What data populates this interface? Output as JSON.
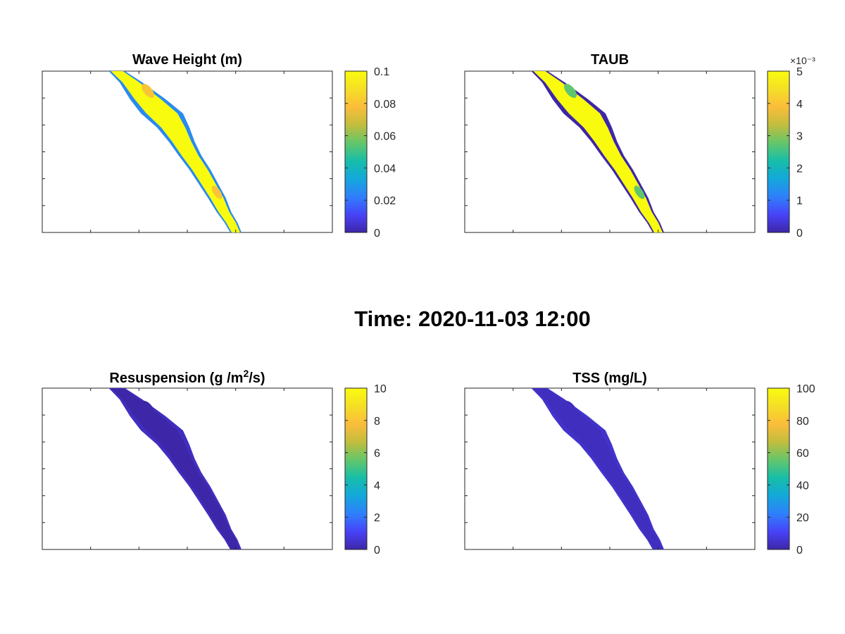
{
  "suptitle": "Time: 2020-11-03 12:00",
  "colormap": [
    "#3e26a8",
    "#4743f8",
    "#2f80fb",
    "#13a8db",
    "#17bea8",
    "#64c66a",
    "#c2bd3d",
    "#fbbd3b",
    "#f5df26",
    "#f9fb0e"
  ],
  "chart_data": [
    {
      "type": "heatmap",
      "title_prefix": "Wave Height (m)",
      "title_sup": "",
      "title_suffix": "",
      "colorbar": {
        "clim": [
          0,
          0.1
        ],
        "ticks": [
          "0",
          "0.02",
          "0.04",
          "0.06",
          "0.08",
          "0.1"
        ],
        "exponent": ""
      },
      "field_level": 1.0,
      "edge_level": 0.25,
      "accent_level": 0.8,
      "xticks_shown": 7,
      "yticks_shown": 7
    },
    {
      "type": "heatmap",
      "title_prefix": "TAUB",
      "title_sup": "",
      "title_suffix": "",
      "colorbar": {
        "clim": [
          0,
          5
        ],
        "ticks": [
          "0",
          "1",
          "2",
          "3",
          "4",
          "5"
        ],
        "exponent": "×10⁻³"
      },
      "field_level": 1.0,
      "edge_level": 0.0,
      "accent_level": 0.55,
      "xticks_shown": 7,
      "yticks_shown": 7
    },
    {
      "type": "heatmap",
      "title_prefix": "Resuspension (g /m",
      "title_sup": "2",
      "title_suffix": "/s)",
      "colorbar": {
        "clim": [
          0,
          10
        ],
        "ticks": [
          "0",
          "2",
          "4",
          "6",
          "8",
          "10"
        ],
        "exponent": ""
      },
      "field_level": 0.0,
      "edge_level": 0.03,
      "accent_level": 0.0,
      "xticks_shown": 7,
      "yticks_shown": 7
    },
    {
      "type": "heatmap",
      "title_prefix": "TSS (mg/L)",
      "title_sup": "",
      "title_suffix": "",
      "colorbar": {
        "clim": [
          0,
          100
        ],
        "ticks": [
          "0",
          "20",
          "40",
          "60",
          "80",
          "100"
        ],
        "exponent": ""
      },
      "field_level": 0.03,
      "edge_level": 0.05,
      "accent_level": 0.03,
      "xticks_shown": 7,
      "yticks_shown": 7
    }
  ]
}
